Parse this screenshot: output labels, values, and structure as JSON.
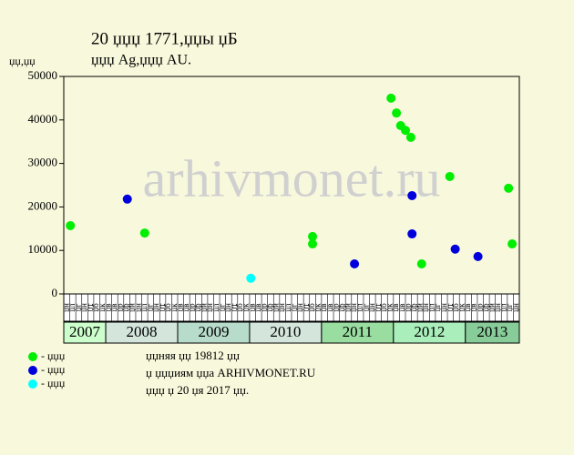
{
  "chart_data": {
    "type": "scatter",
    "title": "20 џџџ 1771,џџы џБ",
    "subtitle": "џџџ Ag,џџџ AU.",
    "y_label": "џџ,џџ",
    "watermark": "arhivmonet.ru",
    "notes": [
      "џџняя џџ 19812 џџ",
      "џ џџџиям џџа ARHIVMONET.RU",
      "џџџ џ 20 џя 2017 џџ."
    ],
    "ylim": [
      0,
      50000
    ],
    "yticks": [
      0,
      10000,
      20000,
      30000,
      40000,
      50000
    ],
    "xlim": [
      0,
      76
    ],
    "xticks": [
      {
        "value": 0,
        "label": "џн"
      },
      {
        "value": 1,
        "label": "џл"
      },
      {
        "value": 2,
        "label": "џг"
      },
      {
        "value": 3,
        "label": "џн"
      },
      {
        "value": 4,
        "label": "џт"
      },
      {
        "value": 5,
        "label": "џб"
      },
      {
        "value": 6,
        "label": "џк"
      },
      {
        "value": 7,
        "label": "џв"
      },
      {
        "value": 8,
        "label": "џв"
      },
      {
        "value": 9,
        "label": "џр"
      },
      {
        "value": 10,
        "label": "џр"
      },
      {
        "value": 11,
        "label": "џй"
      },
      {
        "value": 12,
        "label": "џн"
      },
      {
        "value": 13,
        "label": "џл"
      },
      {
        "value": 14,
        "label": "џг"
      },
      {
        "value": 15,
        "label": "џн"
      },
      {
        "value": 16,
        "label": "џт"
      },
      {
        "value": 17,
        "label": "џб"
      },
      {
        "value": 18,
        "label": "џк"
      },
      {
        "value": 19,
        "label": "џв"
      },
      {
        "value": 20,
        "label": "џв"
      },
      {
        "value": 21,
        "label": "џр"
      },
      {
        "value": 22,
        "label": "џр"
      },
      {
        "value": 23,
        "label": "џй"
      },
      {
        "value": 24,
        "label": "џн"
      },
      {
        "value": 25,
        "label": "џл"
      },
      {
        "value": 26,
        "label": "џг"
      },
      {
        "value": 27,
        "label": "џн"
      },
      {
        "value": 28,
        "label": "џт"
      },
      {
        "value": 29,
        "label": "џб"
      },
      {
        "value": 30,
        "label": "џк"
      },
      {
        "value": 31,
        "label": "џв"
      },
      {
        "value": 32,
        "label": "џв"
      },
      {
        "value": 33,
        "label": "џр"
      },
      {
        "value": 34,
        "label": "џр"
      },
      {
        "value": 35,
        "label": "џй"
      },
      {
        "value": 36,
        "label": "џн"
      },
      {
        "value": 37,
        "label": "џл"
      },
      {
        "value": 38,
        "label": "џг"
      },
      {
        "value": 39,
        "label": "џн"
      },
      {
        "value": 40,
        "label": "џт"
      },
      {
        "value": 41,
        "label": "џб"
      },
      {
        "value": 42,
        "label": "џк"
      },
      {
        "value": 43,
        "label": "џв"
      },
      {
        "value": 44,
        "label": "џв"
      },
      {
        "value": 45,
        "label": "џр"
      },
      {
        "value": 46,
        "label": "џр"
      },
      {
        "value": 47,
        "label": "џй"
      },
      {
        "value": 48,
        "label": "џн"
      },
      {
        "value": 49,
        "label": "џл"
      },
      {
        "value": 50,
        "label": "џг"
      },
      {
        "value": 51,
        "label": "џн"
      },
      {
        "value": 52,
        "label": "џт"
      },
      {
        "value": 53,
        "label": "џб"
      },
      {
        "value": 54,
        "label": "џк"
      },
      {
        "value": 55,
        "label": "џв"
      },
      {
        "value": 56,
        "label": "џв"
      },
      {
        "value": 57,
        "label": "џр"
      },
      {
        "value": 58,
        "label": "џр"
      },
      {
        "value": 59,
        "label": "џй"
      },
      {
        "value": 60,
        "label": "џн"
      },
      {
        "value": 61,
        "label": "џл"
      },
      {
        "value": 62,
        "label": "џг"
      },
      {
        "value": 63,
        "label": "џн"
      },
      {
        "value": 64,
        "label": "џт"
      },
      {
        "value": 65,
        "label": "џб"
      },
      {
        "value": 66,
        "label": "џк"
      },
      {
        "value": 67,
        "label": "џв"
      },
      {
        "value": 68,
        "label": "џв"
      },
      {
        "value": 69,
        "label": "џр"
      },
      {
        "value": 70,
        "label": "џр"
      },
      {
        "value": 71,
        "label": "џй"
      },
      {
        "value": 72,
        "label": "џн"
      },
      {
        "value": 73,
        "label": "џл"
      },
      {
        "value": 74,
        "label": "џг"
      },
      {
        "value": 75,
        "label": "џн"
      }
    ],
    "years": [
      {
        "label": "2007",
        "start": 0,
        "end": 7,
        "color": "#ccffcc"
      },
      {
        "label": "2008",
        "start": 7,
        "end": 19,
        "color": "#d4e6dc"
      },
      {
        "label": "2009",
        "start": 19,
        "end": 31,
        "color": "#b8dccc"
      },
      {
        "label": "2010",
        "start": 31,
        "end": 43,
        "color": "#d4e6dc"
      },
      {
        "label": "2011",
        "start": 43,
        "end": 55,
        "color": "#99dda0"
      },
      {
        "label": "2012",
        "start": 55,
        "end": 67,
        "color": "#aaeebb"
      },
      {
        "label": "2013",
        "start": 67,
        "end": 76,
        "color": "#88cc99"
      }
    ],
    "series": [
      {
        "name": "- џџџ",
        "color": "#00ee00",
        "x": [
          1.1,
          13.5,
          41.5,
          41.5,
          54.6,
          55.5,
          56.2,
          57,
          57.9,
          59.7,
          64.4,
          74.2,
          74.8
        ],
        "values": [
          15700,
          14000,
          13200,
          11500,
          45000,
          41600,
          38700,
          37600,
          36000,
          6900,
          27000,
          24300,
          11500
        ]
      },
      {
        "name": "- џџџ",
        "color": "#0000dd",
        "x": [
          10.6,
          48.5,
          58.1,
          58.1,
          65.3,
          69.1
        ],
        "values": [
          21800,
          6900,
          22600,
          13800,
          10300,
          8600
        ]
      },
      {
        "name": "- џџџ",
        "color": "#00ffff",
        "x": [
          31.2
        ],
        "values": [
          3600
        ]
      }
    ]
  }
}
